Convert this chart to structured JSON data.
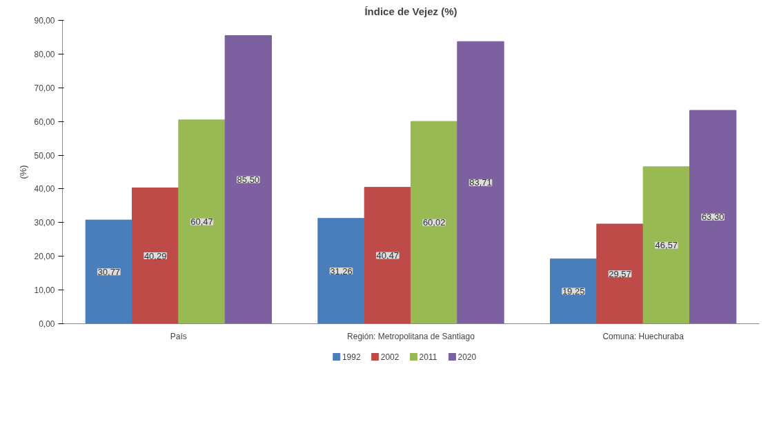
{
  "chart_data": {
    "type": "bar",
    "title": "Índice de Vejez (%)",
    "ylabel": "(%)",
    "categories": [
      "País",
      "Región: Metropolitana de Santiago",
      "Comuna: Huechuraba"
    ],
    "series": [
      {
        "name": "1992",
        "color": "#4a7ebb",
        "values": [
          30.77,
          31.26,
          19.25
        ],
        "value_labels": [
          "30,77",
          "31,26",
          "19,25"
        ]
      },
      {
        "name": "2002",
        "color": "#be4b48",
        "values": [
          40.29,
          40.47,
          29.57
        ],
        "value_labels": [
          "40,29",
          "40,47",
          "29,57"
        ]
      },
      {
        "name": "2011",
        "color": "#98b954",
        "values": [
          60.47,
          60.02,
          46.57
        ],
        "value_labels": [
          "60,47",
          "60,02",
          "46,57"
        ]
      },
      {
        "name": "2020",
        "color": "#7d60a0",
        "values": [
          85.5,
          83.71,
          63.3
        ],
        "value_labels": [
          "85,50",
          "83,71",
          "63,30"
        ]
      }
    ],
    "ylim": [
      0,
      90
    ],
    "yticks": [
      {
        "value": 0,
        "label": "0,00"
      },
      {
        "value": 10,
        "label": "10,00"
      },
      {
        "value": 20,
        "label": "20,00"
      },
      {
        "value": 30,
        "label": "30,00"
      },
      {
        "value": 40,
        "label": "40,00"
      },
      {
        "value": 50,
        "label": "50,00"
      },
      {
        "value": 60,
        "label": "60,00"
      },
      {
        "value": 70,
        "label": "70,00"
      },
      {
        "value": 80,
        "label": "80,00"
      },
      {
        "value": 90,
        "label": "90,00"
      }
    ],
    "grid": false,
    "legend": "bottom"
  }
}
